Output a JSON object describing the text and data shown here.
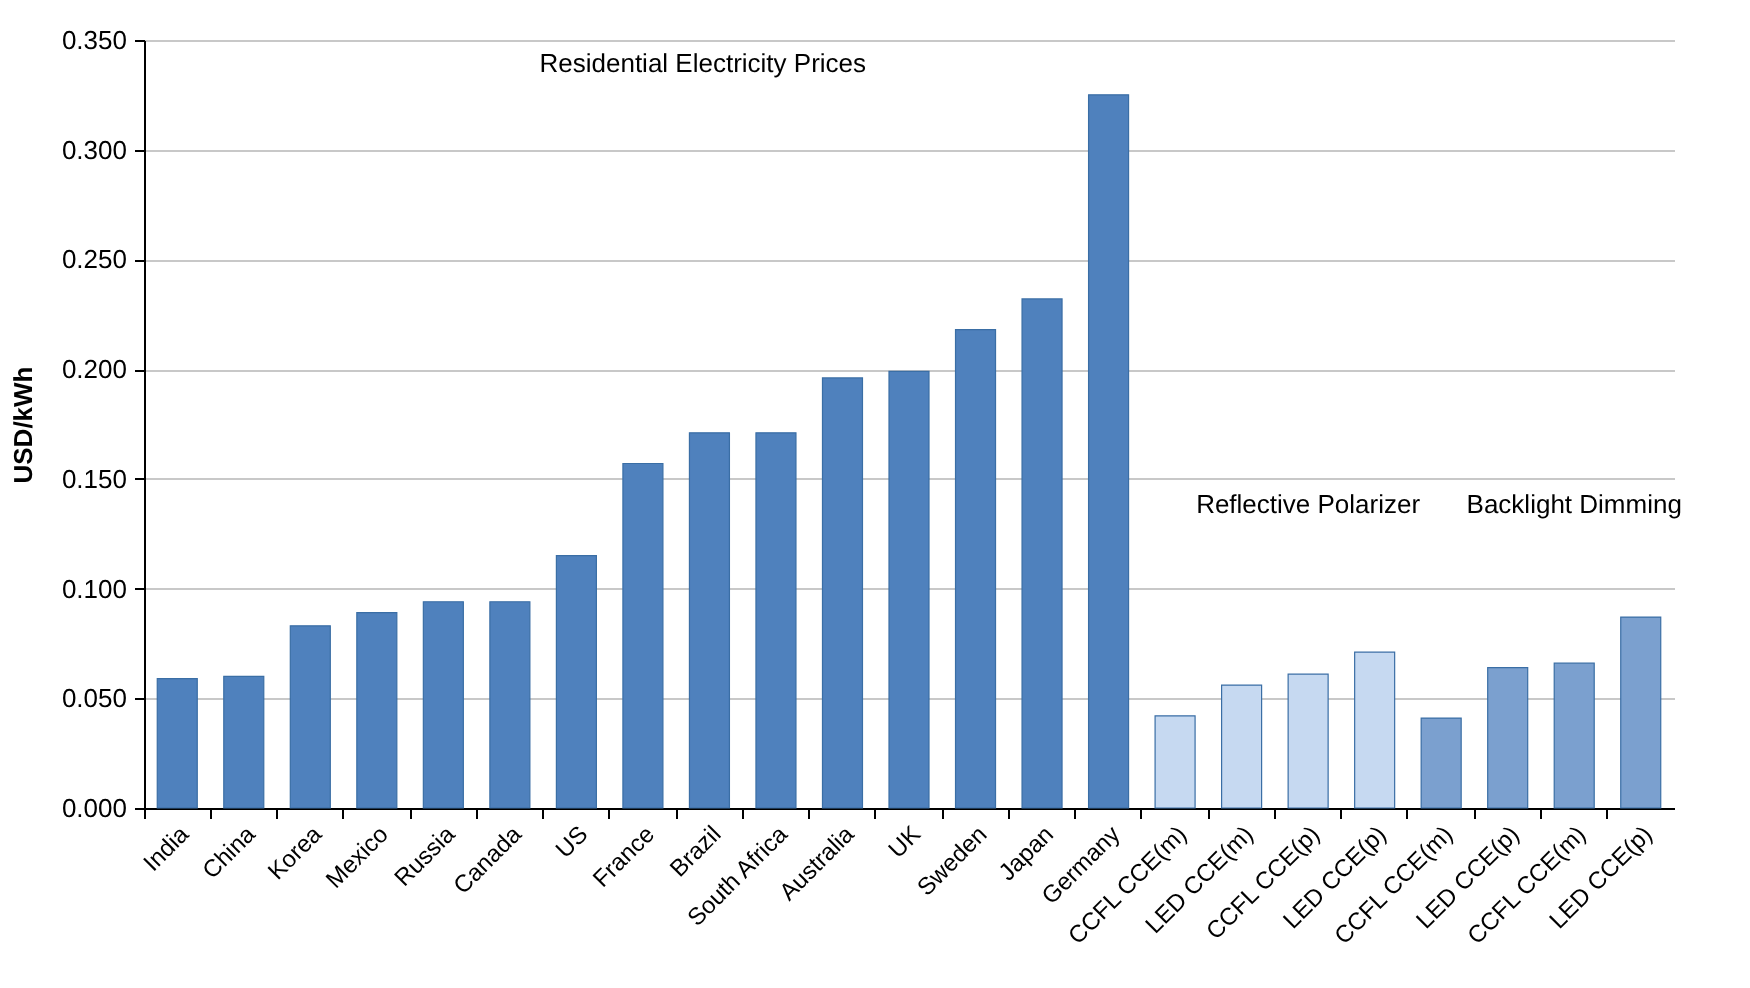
{
  "chart_data": {
    "type": "bar",
    "ylabel": "USD/kWh",
    "categories": [
      "India",
      "China",
      "Korea",
      "Mexico",
      "Russia",
      "Canada",
      "US",
      "France",
      "Brazil",
      "South Africa",
      "Australia",
      "UK",
      "Sweden",
      "Japan",
      "Germany",
      "CCFL CCE(m)",
      "LED CCE(m)",
      "CCFL CCE(p)",
      "LED CCE(p)",
      "CCFL CCE(m)",
      "LED CCE(p)",
      "CCFL CCE(m)",
      "LED CCE(p)"
    ],
    "series": [
      {
        "color": "#4f81bd",
        "values": [
          0.059,
          0.06,
          0.083,
          0.089,
          0.094,
          0.094,
          0.115,
          0.157,
          0.171,
          0.171,
          0.196,
          0.199,
          0.218,
          0.232,
          0.325,
          null,
          null,
          null,
          null,
          null,
          null,
          null,
          null
        ]
      },
      {
        "color": "#c6d9f1",
        "values": [
          null,
          null,
          null,
          null,
          null,
          null,
          null,
          null,
          null,
          null,
          null,
          null,
          null,
          null,
          null,
          0.042,
          0.056,
          0.061,
          0.071,
          null,
          null,
          null,
          null
        ]
      },
      {
        "color": "#7ba0cf",
        "values": [
          null,
          null,
          null,
          null,
          null,
          null,
          null,
          null,
          null,
          null,
          null,
          null,
          null,
          null,
          null,
          null,
          null,
          null,
          null,
          0.041,
          0.064,
          0.066,
          0.087
        ]
      }
    ],
    "ylim": [
      0,
      0.35
    ],
    "yticks": [
      {
        "value": 0,
        "label": "0.000"
      },
      {
        "value": 0.05,
        "label": "0.050"
      },
      {
        "value": 0.1,
        "label": "0.100"
      },
      {
        "value": 0.15,
        "label": "0.150"
      },
      {
        "value": 0.2,
        "label": "0.200"
      },
      {
        "value": 0.25,
        "label": "0.250"
      },
      {
        "value": 0.3,
        "label": "0.300"
      },
      {
        "value": 0.35,
        "label": "0.350"
      }
    ],
    "grid": "y",
    "legend": false,
    "annotations": [
      "Residential Electricity Prices",
      "Reflective Polarizer",
      "Backlight Dimming"
    ]
  }
}
